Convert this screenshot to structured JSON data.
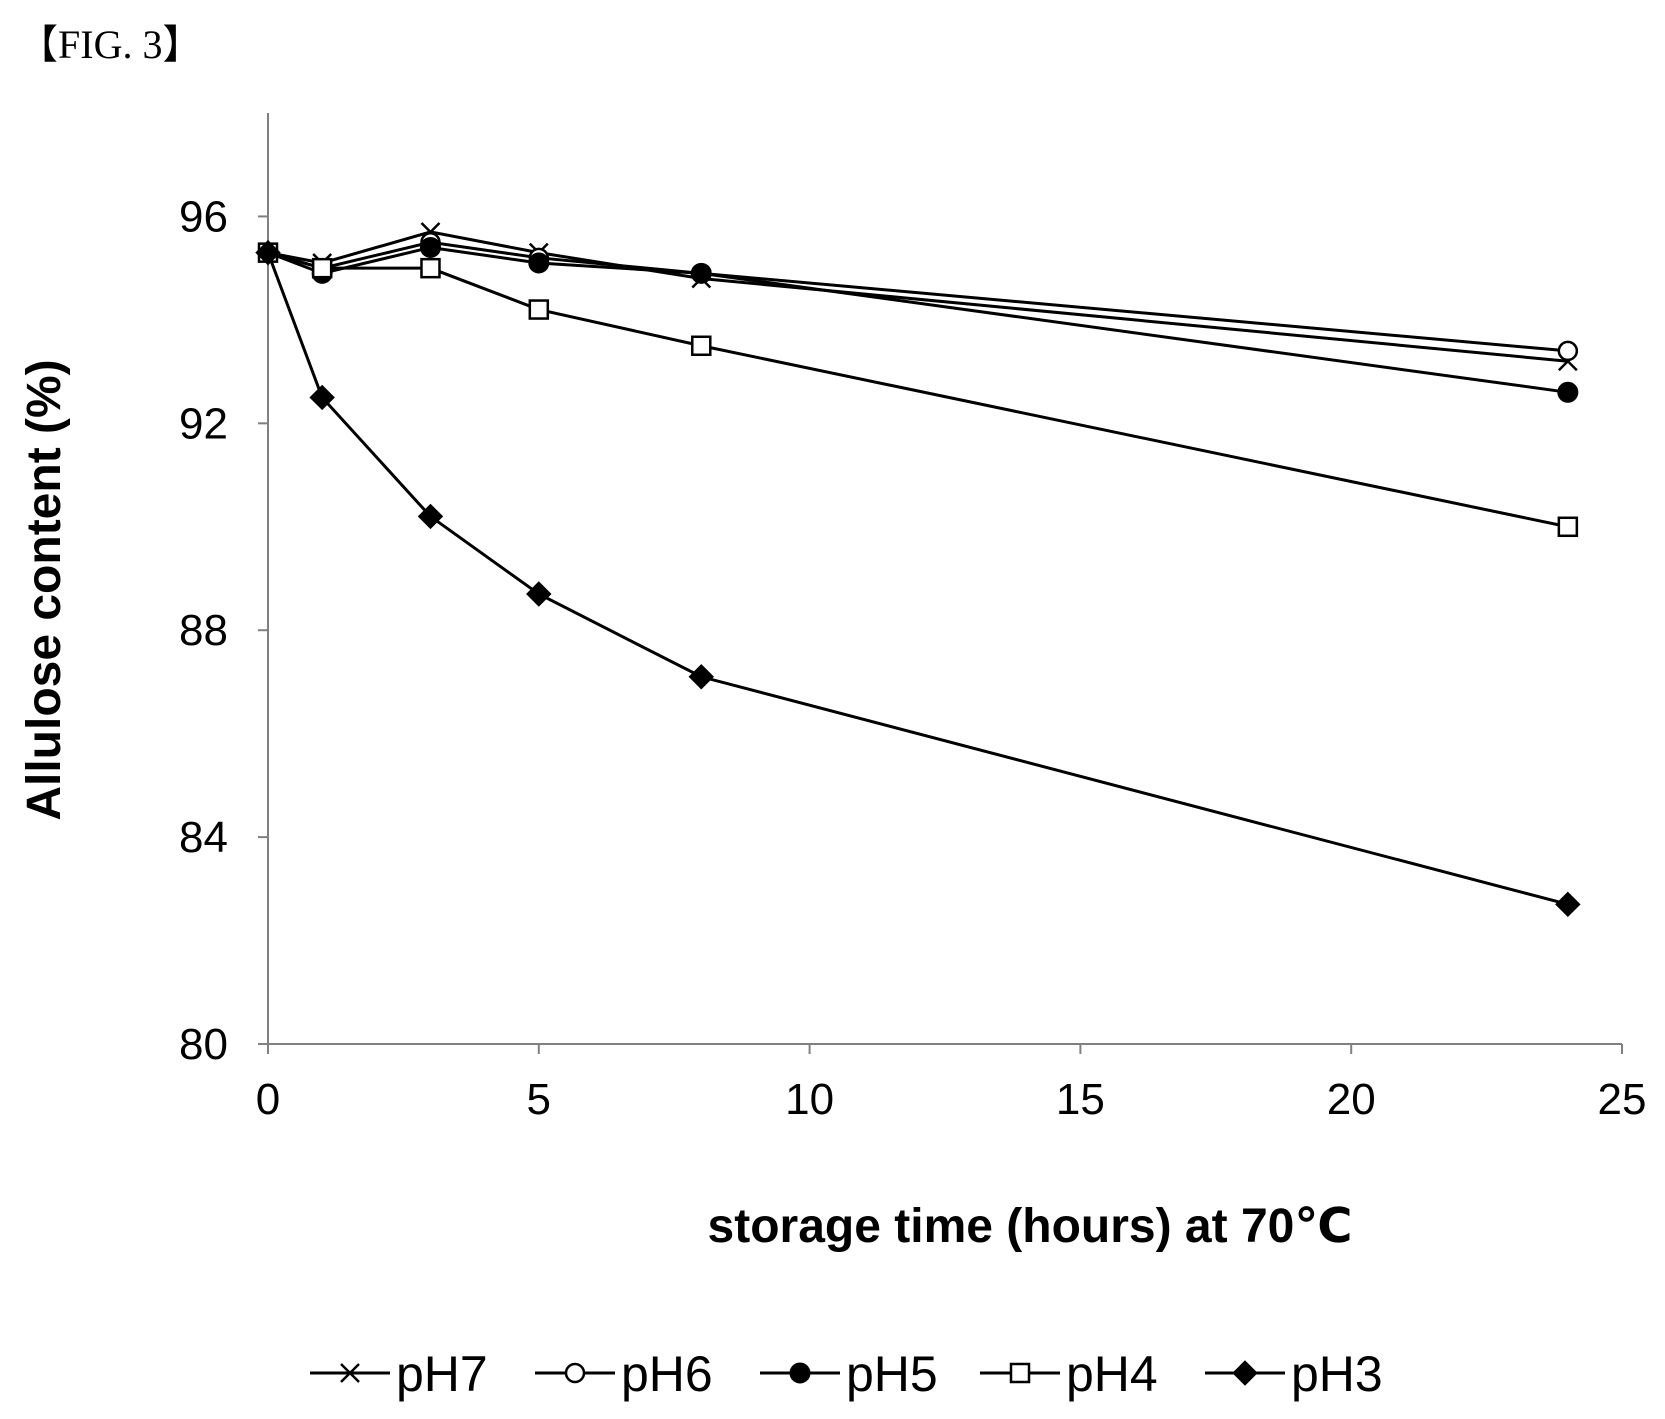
{
  "figure_label": "【FIG. 3】",
  "chart_data": {
    "type": "line",
    "title": "",
    "xlabel": "storage time (hours) at 70℃",
    "ylabel": "Allulose content (%)",
    "xlim": [
      0,
      25
    ],
    "ylim": [
      80,
      98
    ],
    "xticks": [
      0,
      5,
      10,
      15,
      20,
      25
    ],
    "yticks": [
      80,
      84,
      88,
      92,
      96
    ],
    "grid": false,
    "legend_position": "bottom",
    "x": [
      0,
      1,
      3,
      5,
      8,
      24
    ],
    "series": [
      {
        "name": "pH7",
        "marker": "x",
        "values": [
          95.3,
          95.1,
          95.7,
          95.3,
          94.8,
          93.2
        ]
      },
      {
        "name": "pH6",
        "marker": "circle-open",
        "values": [
          95.3,
          95.0,
          95.5,
          95.2,
          94.9,
          93.4
        ]
      },
      {
        "name": "pH5",
        "marker": "circle-filled",
        "values": [
          95.3,
          94.9,
          95.4,
          95.1,
          94.9,
          92.6
        ]
      },
      {
        "name": "pH4",
        "marker": "square-open",
        "values": [
          95.3,
          95.0,
          95.0,
          94.2,
          93.5,
          90.0
        ]
      },
      {
        "name": "pH3",
        "marker": "diamond-filled",
        "values": [
          95.3,
          92.5,
          90.2,
          88.7,
          87.1,
          82.7
        ]
      }
    ]
  }
}
